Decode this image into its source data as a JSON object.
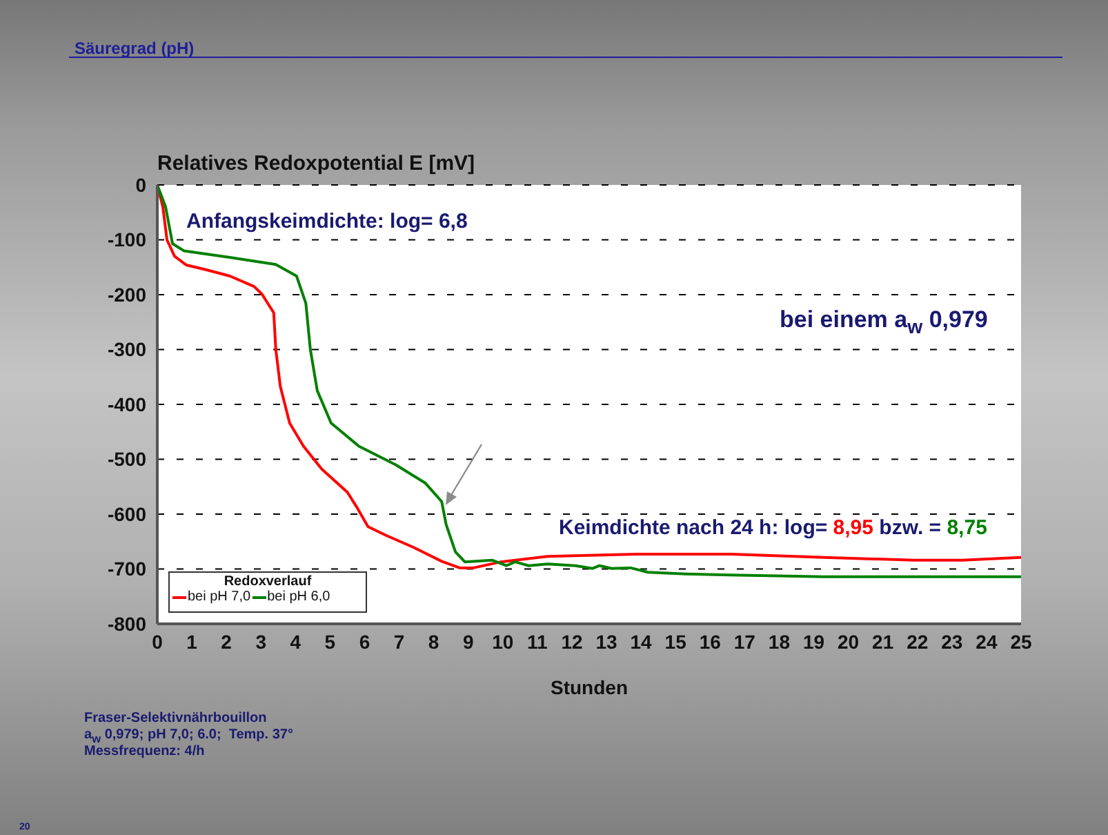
{
  "chart_data": {
    "type": "line",
    "title": "Säuregrad (pH)",
    "ylabel": "Relatives Redoxpotential E [mV]",
    "xlabel": "Stunden",
    "legend_title": "Redoxverlauf",
    "legend": "bottom left",
    "grid": "y",
    "marker": "none",
    "line_style": "solid",
    "xlim": [
      0,
      25
    ],
    "xticks": [
      0,
      1,
      2,
      3,
      4,
      5,
      6,
      7,
      8,
      9,
      10,
      11,
      12,
      13,
      14,
      15,
      16,
      17,
      18,
      19,
      20,
      21,
      22,
      23,
      24,
      25
    ],
    "ylim": [
      -800,
      0
    ],
    "yticks": [
      -800,
      -700,
      -600,
      -500,
      -400,
      -300,
      -200,
      -100,
      0
    ],
    "series": [
      {
        "name": "bei pH 7,0",
        "color": "#ff0000",
        "x": [
          0,
          0.16,
          0.28,
          0.5,
          0.84,
          1.44,
          2.1,
          2.8,
          3.03,
          3.37,
          3.43,
          3.56,
          3.83,
          4.23,
          4.76,
          5.5,
          5.76,
          6.1,
          6.63,
          7.43,
          8.23,
          8.75,
          9.15,
          9.95,
          11.3,
          13.9,
          16.6,
          19.3,
          21.9,
          23.3,
          25
        ],
        "values": [
          0,
          -40,
          -100,
          -130,
          -146,
          -155,
          -166,
          -185,
          -199,
          -233,
          -300,
          -367,
          -434,
          -476,
          -518,
          -560,
          -586,
          -623,
          -639,
          -661,
          -686,
          -698,
          -698,
          -687,
          -677,
          -673,
          -673,
          -679,
          -684,
          -684,
          -679
        ]
      },
      {
        "name": "bei pH 6,0",
        "color": "#008000",
        "x": [
          0,
          0.24,
          0.44,
          0.77,
          2.1,
          3.43,
          4.03,
          4.3,
          4.43,
          4.63,
          5.03,
          5.83,
          6.9,
          7.75,
          8.23,
          8.36,
          8.63,
          8.9,
          9.7,
          10.1,
          10.36,
          10.75,
          11.3,
          12.1,
          12.6,
          12.8,
          13.15,
          13.7,
          14.2,
          15.3,
          16.6,
          19.3,
          21.9,
          25
        ],
        "values": [
          0,
          -40,
          -107,
          -120,
          -132,
          -145,
          -166,
          -216,
          -300,
          -375,
          -434,
          -476,
          -510,
          -543,
          -577,
          -619,
          -669,
          -687,
          -684,
          -694,
          -687,
          -694,
          -691,
          -694,
          -699,
          -694,
          -699,
          -698,
          -706,
          -709,
          -711,
          -714,
          -714,
          -714
        ]
      }
    ],
    "annotations": [
      "Anfangskeimdichte: log= 6,8",
      "bei einem a$_{w}$ 0,979",
      "Keimdichte nach 24 h: log=",
      "8,95",
      "bzw. =",
      "8,75",
      "Fraser-Selektivnährbouillon",
      "a$_{w}$ 0,979; pH 7,0; 6.0;  Temp. 37°",
      "Messfrequenz: 4/h",
      "20"
    ]
  }
}
